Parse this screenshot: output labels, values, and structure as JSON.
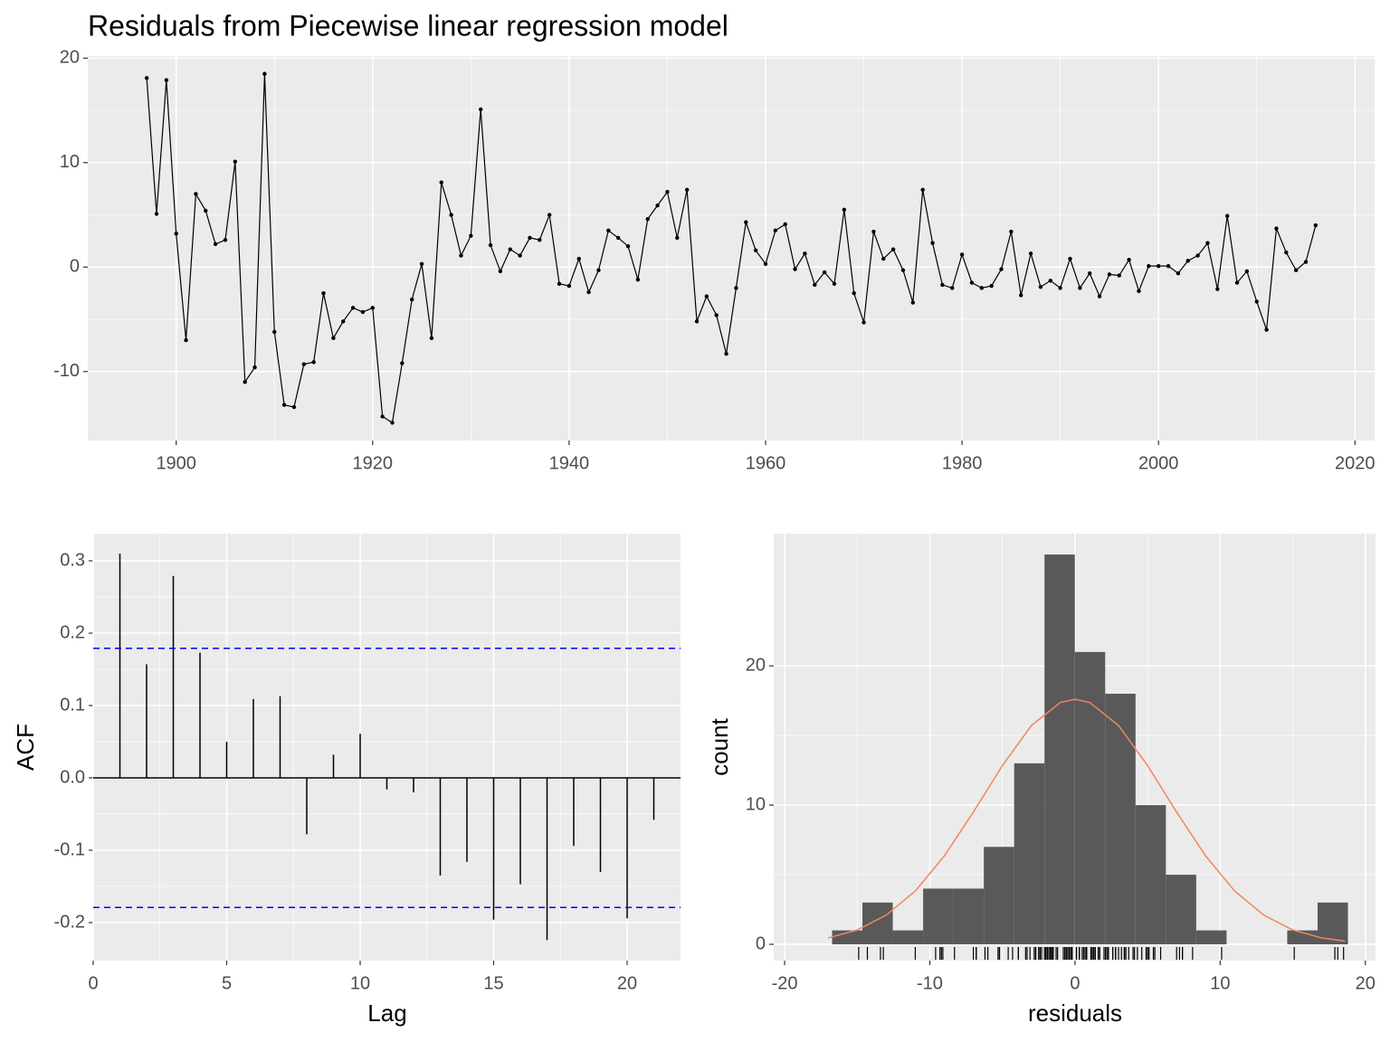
{
  "chart_data": [
    {
      "type": "line",
      "title": "Residuals from Piecewise linear regression model",
      "x": [
        1897,
        1898,
        1899,
        1900,
        1901,
        1902,
        1903,
        1904,
        1905,
        1906,
        1907,
        1908,
        1909,
        1910,
        1911,
        1912,
        1913,
        1914,
        1915,
        1916,
        1917,
        1918,
        1919,
        1920,
        1921,
        1922,
        1923,
        1924,
        1925,
        1926,
        1927,
        1928,
        1929,
        1930,
        1931,
        1932,
        1933,
        1934,
        1935,
        1936,
        1937,
        1938,
        1939,
        1940,
        1941,
        1942,
        1943,
        1944,
        1945,
        1946,
        1947,
        1948,
        1949,
        1950,
        1951,
        1952,
        1953,
        1954,
        1955,
        1956,
        1957,
        1958,
        1959,
        1960,
        1961,
        1962,
        1963,
        1964,
        1965,
        1966,
        1967,
        1968,
        1969,
        1970,
        1971,
        1972,
        1973,
        1974,
        1975,
        1976,
        1977,
        1978,
        1979,
        1980,
        1981,
        1982,
        1983,
        1984,
        1985,
        1986,
        1987,
        1988,
        1989,
        1990,
        1991,
        1992,
        1993,
        1994,
        1995,
        1996,
        1997,
        1998,
        1999,
        2000,
        2001,
        2002,
        2003,
        2004,
        2005,
        2006,
        2007,
        2008,
        2009,
        2010,
        2011,
        2012,
        2013,
        2014,
        2015,
        2016
      ],
      "values": [
        18.1,
        5.1,
        17.9,
        3.2,
        -7.0,
        7.0,
        5.4,
        2.2,
        2.6,
        10.1,
        -11.0,
        -9.6,
        18.5,
        -6.2,
        -13.2,
        -13.4,
        -9.3,
        -9.1,
        -2.5,
        -6.8,
        -5.2,
        -3.9,
        -4.3,
        -3.9,
        -14.3,
        -14.9,
        -9.2,
        -3.1,
        0.3,
        -6.8,
        8.1,
        5.0,
        1.1,
        3.0,
        15.1,
        2.1,
        -0.4,
        1.7,
        1.1,
        2.8,
        2.6,
        5.0,
        -1.6,
        -1.8,
        0.8,
        -2.4,
        -0.3,
        3.5,
        2.8,
        2.0,
        -1.2,
        4.6,
        5.9,
        7.2,
        2.8,
        7.4,
        -5.2,
        -2.8,
        -4.6,
        -8.3,
        -2.0,
        4.3,
        1.6,
        0.3,
        3.5,
        4.1,
        -0.2,
        1.3,
        -1.7,
        -0.5,
        -1.6,
        5.5,
        -2.5,
        -5.3,
        3.4,
        0.8,
        1.7,
        -0.3,
        -3.4,
        7.4,
        2.3,
        -1.7,
        -2.0,
        1.2,
        -1.5,
        -2.0,
        -1.8,
        -0.2,
        3.4,
        -2.7,
        1.3,
        -1.9,
        -1.3,
        -2.0,
        0.8,
        -2.0,
        -0.6,
        -2.8,
        -0.7,
        -0.8,
        0.7,
        -2.3,
        0.1,
        0.1,
        0.1,
        -0.6,
        0.6,
        1.1,
        2.3,
        -2.1,
        4.9,
        -1.5,
        -0.4,
        -3.3,
        -6.0,
        3.7,
        1.4,
        -0.3,
        0.5,
        4.0
      ],
      "color": "#000000",
      "xlim": [
        1891,
        2022
      ],
      "ylim": [
        -16.6,
        20.2
      ],
      "xticks": [
        1900,
        1920,
        1940,
        1960,
        1980,
        2000,
        2020
      ],
      "yticks": [
        -10,
        0,
        10,
        20
      ],
      "grid": true
    },
    {
      "type": "acf",
      "x_label": "Lag",
      "y_label": "ACF",
      "x": [
        1,
        2,
        3,
        4,
        5,
        6,
        7,
        8,
        9,
        10,
        11,
        12,
        13,
        14,
        15,
        16,
        17,
        18,
        19,
        20,
        21
      ],
      "values": [
        0.31,
        0.157,
        0.279,
        0.173,
        0.05,
        0.109,
        0.113,
        -0.078,
        0.032,
        0.061,
        -0.016,
        -0.02,
        -0.135,
        -0.116,
        -0.196,
        -0.147,
        -0.224,
        -0.094,
        -0.13,
        -0.194,
        -0.058
      ],
      "color": "#000000",
      "conf_limits": [
        0.179,
        -0.179
      ],
      "conf_color": "#0000ff",
      "xlim": [
        0,
        22
      ],
      "ylim": [
        -0.2525,
        0.3375
      ],
      "xticks": [
        0,
        5,
        10,
        15,
        20
      ],
      "yticks": [
        -0.2,
        -0.1,
        {
          "value": 0,
          "label": "0.0"
        },
        0.1,
        0.2,
        0.3
      ],
      "grid": true
    },
    {
      "type": "histogram",
      "x_label": "residuals",
      "y_label": "count",
      "bins": [
        -16.73,
        -14.64,
        -12.55,
        -10.46,
        -8.37,
        -6.28,
        -4.19,
        -2.1,
        -0.01,
        2.08,
        4.17,
        6.26,
        8.35,
        10.44,
        12.53,
        14.62,
        16.71,
        18.8
      ],
      "counts": [
        1,
        3,
        1,
        4,
        4,
        7,
        13,
        28,
        21,
        18,
        10,
        5,
        1,
        0,
        0,
        1,
        3
      ],
      "color": "#595959",
      "rug": true,
      "curve": {
        "color": "#f4845f",
        "x": [
          -17,
          -15,
          -13,
          -11,
          -9,
          -7,
          -5,
          -3,
          -1,
          0,
          1,
          3,
          5,
          7,
          9,
          11,
          13,
          15,
          17,
          18.6
        ],
        "y": [
          0.46,
          1.03,
          2.1,
          3.83,
          6.35,
          9.5,
          12.84,
          15.72,
          17.38,
          17.6,
          17.38,
          15.72,
          12.84,
          9.5,
          6.35,
          3.83,
          2.1,
          1.03,
          0.46,
          0.23
        ]
      },
      "xlim": [
        -20.75,
        20.7
      ],
      "ylim": [
        -1.17,
        29.5
      ],
      "xticks": [
        -20,
        -10,
        0,
        10,
        20
      ],
      "yticks": [
        0,
        10,
        20
      ],
      "grid": true
    }
  ]
}
